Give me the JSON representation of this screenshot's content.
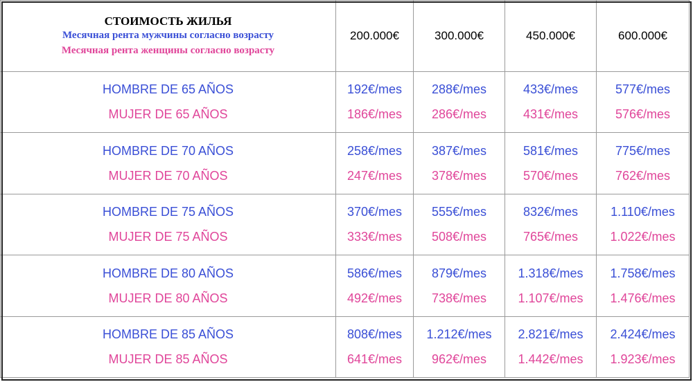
{
  "colors": {
    "men": "#3a4fd6",
    "women": "#e0469a",
    "title": "#000000",
    "border": "#9a9a9a"
  },
  "header": {
    "title": "СТОИМОСТЬ ЖИЛЬЯ",
    "men_caption": "Месячная рента мужчины согласно возрасту",
    "women_caption": "Месячная рента женщины согласно возрасту",
    "prices": [
      "200.000€",
      "300.000€",
      "450.000€",
      "600.000€"
    ]
  },
  "rows": [
    {
      "men_label": "HOMBRE DE 65 AÑOS",
      "women_label": "MUJER DE 65 AÑOS",
      "men_values": [
        "192€/mes",
        "288€/mes",
        "433€/mes",
        "577€/mes"
      ],
      "women_values": [
        "186€/mes",
        "286€/mes",
        "431€/mes",
        "576€/mes"
      ]
    },
    {
      "men_label": "HOMBRE DE 70 AÑOS",
      "women_label": "MUJER DE 70 AÑOS",
      "men_values": [
        "258€/mes",
        "387€/mes",
        "581€/mes",
        "775€/mes"
      ],
      "women_values": [
        "247€/mes",
        "378€/mes",
        "570€/mes",
        "762€/mes"
      ]
    },
    {
      "men_label": "HOMBRE DE 75 AÑOS",
      "women_label": "MUJER DE 75 AÑOS",
      "men_values": [
        "370€/mes",
        "555€/mes",
        "832€/mes",
        "1.110€/mes"
      ],
      "women_values": [
        "333€/mes",
        "508€/mes",
        "765€/mes",
        "1.022€/mes"
      ]
    },
    {
      "men_label": "HOMBRE DE 80 AÑOS",
      "women_label": "MUJER DE 80 AÑOS",
      "men_values": [
        "586€/mes",
        "879€/mes",
        "1.318€/mes",
        "1.758€/mes"
      ],
      "women_values": [
        "492€/mes",
        "738€/mes",
        "1.107€/mes",
        "1.476€/mes"
      ]
    },
    {
      "men_label": "HOMBRE DE 85 AÑOS",
      "women_label": "MUJER DE 85 AÑOS",
      "men_values": [
        "808€/mes",
        "1.212€/mes",
        "2.821€/mes",
        "2.424€/mes"
      ],
      "women_values": [
        "641€/mes",
        "962€/mes",
        "1.442€/mes",
        "1.923€/mes"
      ]
    }
  ]
}
